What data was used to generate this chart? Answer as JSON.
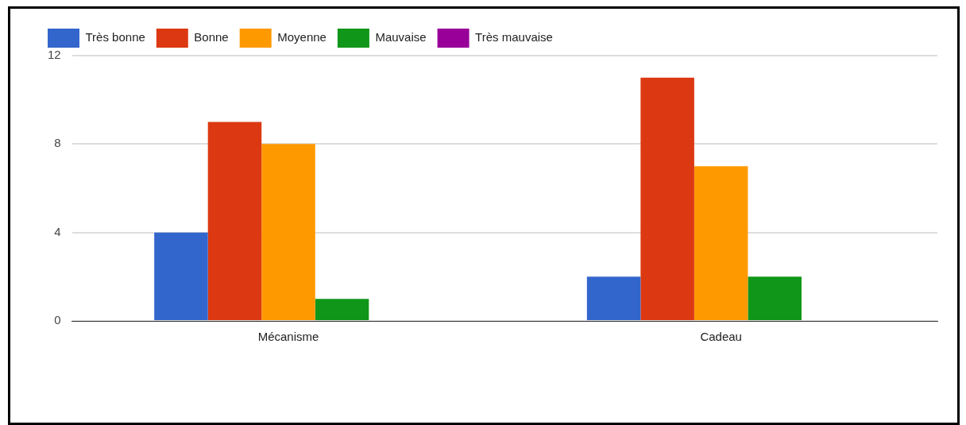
{
  "chart_data": {
    "type": "bar",
    "categories": [
      "Mécanisme",
      "Cadeau"
    ],
    "series": [
      {
        "name": "Très bonne",
        "color": "#3366cc",
        "values": [
          4,
          2
        ]
      },
      {
        "name": "Bonne",
        "color": "#dc3912",
        "values": [
          9,
          11
        ]
      },
      {
        "name": "Moyenne",
        "color": "#ff9900",
        "values": [
          8,
          7
        ]
      },
      {
        "name": "Mauvaise",
        "color": "#109618",
        "values": [
          1,
          2
        ]
      },
      {
        "name": "Très mauvaise",
        "color": "#990099",
        "values": [
          0,
          0
        ]
      }
    ],
    "ylim": [
      0,
      12
    ],
    "yticks": [
      0,
      4,
      8,
      12
    ],
    "grid": "y",
    "legend": "top left"
  }
}
